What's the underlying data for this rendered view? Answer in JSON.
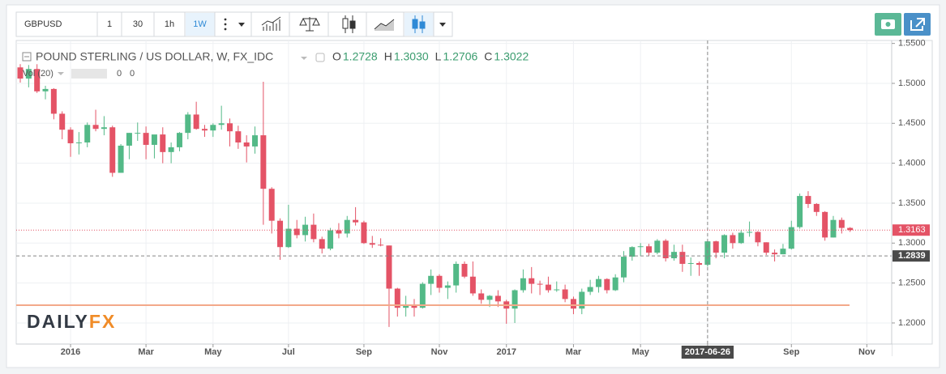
{
  "toolbar": {
    "symbol": "GBPUSD",
    "intervals": [
      "1",
      "30",
      "1h",
      "1W"
    ],
    "active_interval": 3
  },
  "legend": {
    "title": "POUND STERLING / US DOLLAR, W, FX_IDC",
    "readout": [
      {
        "key": "O",
        "value": "1.2728"
      },
      {
        "key": "H",
        "value": "1.3030"
      },
      {
        "key": "L",
        "value": "1.2706"
      },
      {
        "key": "C",
        "value": "1.3022"
      }
    ],
    "indicator": {
      "name": "Vol (20)",
      "values": [
        "0",
        "0"
      ]
    }
  },
  "logo": {
    "part1": "DAILY",
    "part2": "FX"
  },
  "chart_data": {
    "type": "candlestick",
    "up_color": "#53b987",
    "down_color": "#e45366",
    "categories": [
      null,
      null,
      null,
      null,
      null,
      null,
      "2016",
      null,
      null,
      null,
      null,
      null,
      null,
      null,
      null,
      "Mar",
      null,
      null,
      null,
      null,
      null,
      null,
      null,
      "May",
      null,
      null,
      null,
      null,
      null,
      null,
      null,
      null,
      "Jul",
      null,
      null,
      null,
      null,
      null,
      null,
      null,
      null,
      "Sep",
      null,
      null,
      null,
      null,
      null,
      null,
      null,
      null,
      "Nov",
      null,
      null,
      null,
      null,
      null,
      null,
      null,
      "2017",
      null,
      null,
      null,
      null,
      null,
      null,
      null,
      "Mar",
      null,
      null,
      null,
      null,
      null,
      null,
      null,
      "May",
      null,
      null,
      null,
      null,
      null,
      null,
      null,
      "2017-06-26",
      null,
      null,
      null,
      null,
      null,
      null,
      null,
      null,
      null,
      "Sep",
      null,
      null,
      null,
      null,
      null,
      null,
      null,
      null,
      "Nov"
    ],
    "ohlc": [
      [
        1.52,
        1.524,
        1.501,
        1.506
      ],
      [
        1.506,
        1.523,
        1.495,
        1.518
      ],
      [
        1.518,
        1.524,
        1.488,
        1.49
      ],
      [
        1.49,
        1.497,
        1.48,
        1.493
      ],
      [
        1.493,
        1.494,
        1.455,
        1.462
      ],
      [
        1.462,
        1.465,
        1.43,
        1.442
      ],
      [
        1.442,
        1.445,
        1.408,
        1.425
      ],
      [
        1.425,
        1.439,
        1.411,
        1.426
      ],
      [
        1.426,
        1.451,
        1.42,
        1.448
      ],
      [
        1.448,
        1.467,
        1.44,
        1.443
      ],
      [
        1.443,
        1.459,
        1.435,
        1.445
      ],
      [
        1.445,
        1.447,
        1.383,
        1.388
      ],
      [
        1.388,
        1.424,
        1.388,
        1.422
      ],
      [
        1.422,
        1.438,
        1.405,
        1.438
      ],
      [
        1.438,
        1.451,
        1.428,
        1.438
      ],
      [
        1.438,
        1.446,
        1.405,
        1.423
      ],
      [
        1.423,
        1.435,
        1.406,
        1.436
      ],
      [
        1.436,
        1.445,
        1.4,
        1.414
      ],
      [
        1.414,
        1.426,
        1.4,
        1.42
      ],
      [
        1.42,
        1.439,
        1.415,
        1.438
      ],
      [
        1.438,
        1.464,
        1.43,
        1.461
      ],
      [
        1.461,
        1.477,
        1.442,
        1.443
      ],
      [
        1.443,
        1.448,
        1.433,
        1.441
      ],
      [
        1.441,
        1.45,
        1.433,
        1.448
      ],
      [
        1.448,
        1.472,
        1.442,
        1.45
      ],
      [
        1.45,
        1.456,
        1.421,
        1.44
      ],
      [
        1.44,
        1.447,
        1.418,
        1.426
      ],
      [
        1.426,
        1.435,
        1.401,
        1.421
      ],
      [
        1.421,
        1.446,
        1.412,
        1.435
      ],
      [
        1.435,
        1.502,
        1.323,
        1.368
      ],
      [
        1.368,
        1.37,
        1.312,
        1.328
      ],
      [
        1.328,
        1.331,
        1.279,
        1.295
      ],
      [
        1.295,
        1.348,
        1.294,
        1.318
      ],
      [
        1.318,
        1.329,
        1.306,
        1.31
      ],
      [
        1.31,
        1.333,
        1.302,
        1.323
      ],
      [
        1.323,
        1.337,
        1.301,
        1.305
      ],
      [
        1.305,
        1.308,
        1.287,
        1.293
      ],
      [
        1.293,
        1.319,
        1.291,
        1.316
      ],
      [
        1.316,
        1.325,
        1.306,
        1.312
      ],
      [
        1.312,
        1.334,
        1.307,
        1.329
      ],
      [
        1.329,
        1.345,
        1.322,
        1.326
      ],
      [
        1.326,
        1.328,
        1.299,
        1.3
      ],
      [
        1.3,
        1.309,
        1.294,
        1.298
      ],
      [
        1.298,
        1.306,
        1.296,
        1.297
      ],
      [
        1.297,
        1.297,
        1.195,
        1.243
      ],
      [
        1.243,
        1.244,
        1.208,
        1.219
      ],
      [
        1.219,
        1.234,
        1.208,
        1.223
      ],
      [
        1.223,
        1.23,
        1.208,
        1.219
      ],
      [
        1.219,
        1.251,
        1.218,
        1.249
      ],
      [
        1.249,
        1.267,
        1.235,
        1.259
      ],
      [
        1.259,
        1.261,
        1.238,
        1.244
      ],
      [
        1.244,
        1.252,
        1.23,
        1.247
      ],
      [
        1.247,
        1.277,
        1.238,
        1.274
      ],
      [
        1.274,
        1.277,
        1.256,
        1.258
      ],
      [
        1.258,
        1.277,
        1.234,
        1.237
      ],
      [
        1.237,
        1.242,
        1.224,
        1.229
      ],
      [
        1.229,
        1.235,
        1.22,
        1.234
      ],
      [
        1.234,
        1.241,
        1.22,
        1.227
      ],
      [
        1.227,
        1.229,
        1.199,
        1.218
      ],
      [
        1.218,
        1.242,
        1.2,
        1.241
      ],
      [
        1.241,
        1.267,
        1.238,
        1.256
      ],
      [
        1.256,
        1.27,
        1.237,
        1.249
      ],
      [
        1.249,
        1.253,
        1.235,
        1.248
      ],
      [
        1.248,
        1.258,
        1.238,
        1.241
      ],
      [
        1.241,
        1.252,
        1.239,
        1.242
      ],
      [
        1.242,
        1.248,
        1.226,
        1.23
      ],
      [
        1.23,
        1.233,
        1.211,
        1.218
      ],
      [
        1.218,
        1.243,
        1.211,
        1.239
      ],
      [
        1.239,
        1.254,
        1.235,
        1.245
      ],
      [
        1.245,
        1.259,
        1.238,
        1.255
      ],
      [
        1.255,
        1.256,
        1.237,
        1.241
      ],
      [
        1.241,
        1.261,
        1.24,
        1.257
      ],
      [
        1.257,
        1.29,
        1.251,
        1.283
      ],
      [
        1.283,
        1.296,
        1.278,
        1.295
      ],
      [
        1.295,
        1.3,
        1.284,
        1.296
      ],
      [
        1.296,
        1.299,
        1.284,
        1.288
      ],
      [
        1.288,
        1.305,
        1.286,
        1.303
      ],
      [
        1.303,
        1.305,
        1.277,
        1.281
      ],
      [
        1.281,
        1.298,
        1.278,
        1.289
      ],
      [
        1.289,
        1.298,
        1.264,
        1.274
      ],
      [
        1.274,
        1.282,
        1.259,
        1.275
      ],
      [
        1.275,
        1.277,
        1.259,
        1.2728
      ],
      [
        1.2728,
        1.303,
        1.2706,
        1.3022
      ],
      [
        1.3022,
        1.303,
        1.281,
        1.288
      ],
      [
        1.288,
        1.311,
        1.281,
        1.31
      ],
      [
        1.31,
        1.313,
        1.293,
        1.3
      ],
      [
        1.3,
        1.316,
        1.299,
        1.313
      ],
      [
        1.313,
        1.327,
        1.308,
        1.314
      ],
      [
        1.314,
        1.315,
        1.296,
        1.301
      ],
      [
        1.301,
        1.301,
        1.285,
        1.288
      ],
      [
        1.288,
        1.292,
        1.277,
        1.286
      ],
      [
        1.286,
        1.299,
        1.286,
        1.293
      ],
      [
        1.293,
        1.328,
        1.292,
        1.32
      ],
      [
        1.32,
        1.362,
        1.318,
        1.359
      ],
      [
        1.359,
        1.365,
        1.344,
        1.349
      ],
      [
        1.349,
        1.35,
        1.334,
        1.339
      ],
      [
        1.339,
        1.34,
        1.303,
        1.307
      ],
      [
        1.307,
        1.334,
        1.307,
        1.329
      ],
      [
        1.329,
        1.332,
        1.312,
        1.319
      ],
      [
        1.319,
        1.32,
        1.314,
        1.3163
      ],
      null,
      null
    ],
    "ylim": [
      1.1736,
      1.5537
    ],
    "yticks": [
      {
        "value": 1.2,
        "label": "1.2000"
      },
      {
        "value": 1.25,
        "label": "1.2500"
      },
      {
        "value": 1.3,
        "label": "1.3000"
      },
      {
        "value": 1.35,
        "label": "1.3500"
      },
      {
        "value": 1.4,
        "label": "1.4000"
      },
      {
        "value": 1.45,
        "label": "1.4500"
      },
      {
        "value": 1.5,
        "label": "1.5000"
      },
      {
        "value": 1.55,
        "label": "1.5500"
      }
    ],
    "grid": true,
    "last_price": {
      "value": 1.3163,
      "color": "#e45366"
    },
    "crosshair": {
      "price": 1.2839,
      "category": "2017-06-26"
    }
  }
}
